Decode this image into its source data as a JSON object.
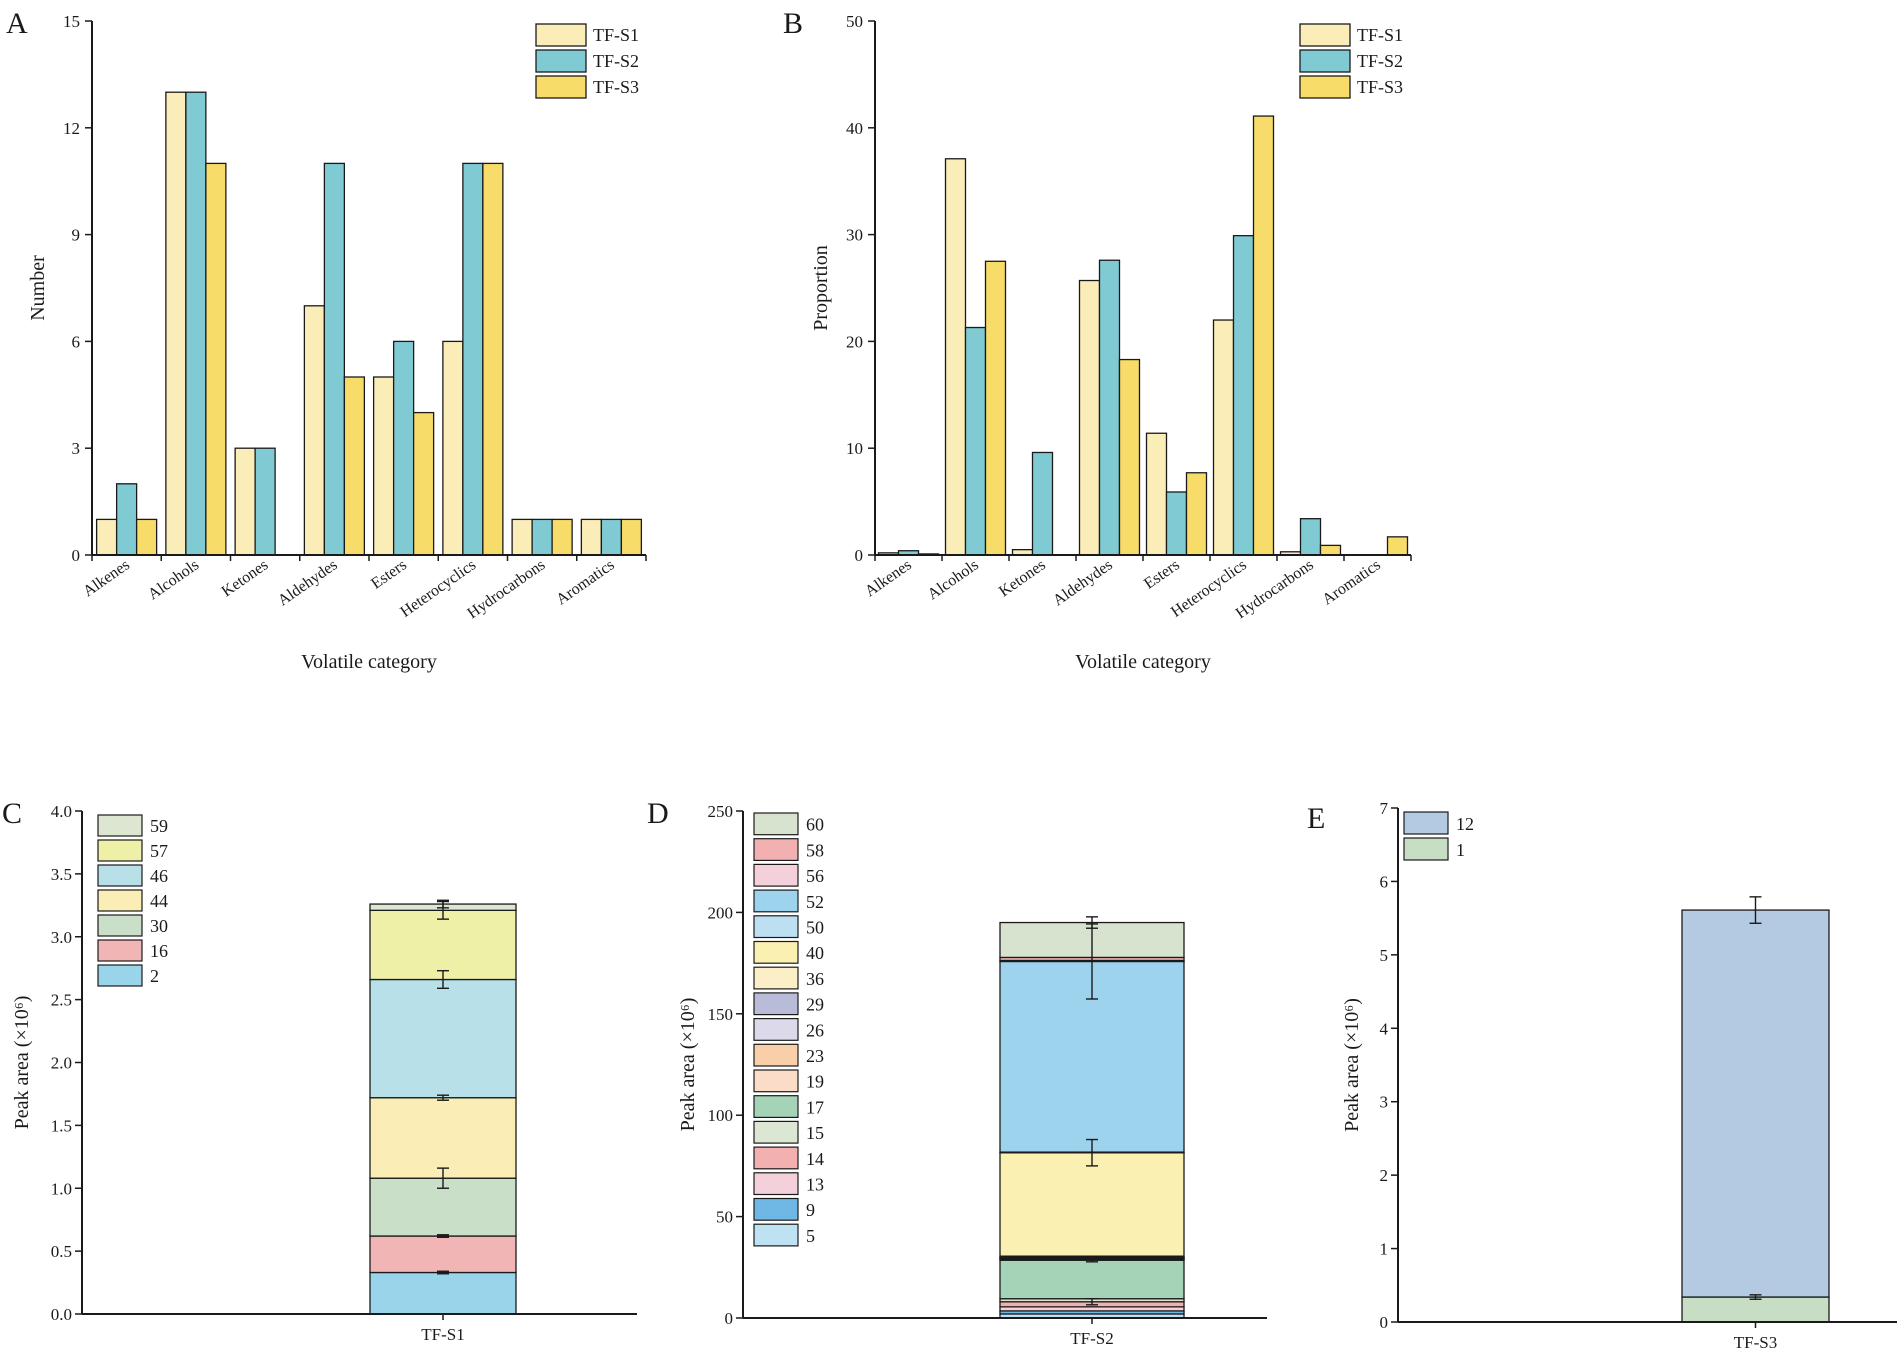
{
  "figure": {
    "panels": [
      "A",
      "B",
      "C",
      "D",
      "E"
    ]
  },
  "chart_data": [
    {
      "panel": "A",
      "type": "bar",
      "title": "",
      "xlabel": "Volatile category",
      "ylabel": "Number",
      "ylim": [
        0,
        15
      ],
      "yticks": [
        0,
        3,
        6,
        9,
        12,
        15
      ],
      "categories": [
        "Alkenes",
        "Alcohols",
        "Ketones",
        "Aldehydes",
        "Esters",
        "Heterocyclics",
        "Hydrocarbons",
        "Aromatics"
      ],
      "series": [
        {
          "name": "TF-S1",
          "color": "#FBEDB8",
          "values": [
            1,
            13,
            3,
            7,
            5,
            6,
            1,
            1
          ]
        },
        {
          "name": "TF-S2",
          "color": "#7FCAD3",
          "values": [
            2,
            13,
            3,
            11,
            6,
            11,
            1,
            1
          ]
        },
        {
          "name": "TF-S3",
          "color": "#F8DC6A",
          "values": [
            1,
            11,
            0,
            5,
            4,
            11,
            1,
            1
          ]
        }
      ],
      "legend": "top-right"
    },
    {
      "panel": "B",
      "type": "bar",
      "title": "",
      "xlabel": "Volatile category",
      "ylabel": "Proportion",
      "ylim": [
        0,
        50
      ],
      "yticks": [
        0,
        10,
        20,
        30,
        40,
        50
      ],
      "categories": [
        "Alkenes",
        "Alcohols",
        "Ketones",
        "Aldehydes",
        "Esters",
        "Heterocyclics",
        "Hydrocarbons",
        "Aromatics"
      ],
      "series": [
        {
          "name": "TF-S1",
          "color": "#FBEDB8",
          "values": [
            0.2,
            37.1,
            0.5,
            25.7,
            11.4,
            22.0,
            0.3,
            0
          ]
        },
        {
          "name": "TF-S2",
          "color": "#7FCAD3",
          "values": [
            0.4,
            21.3,
            9.6,
            27.6,
            5.9,
            29.9,
            3.4,
            0
          ]
        },
        {
          "name": "TF-S3",
          "color": "#F8DC6A",
          "values": [
            0.1,
            27.5,
            0,
            18.3,
            7.7,
            41.1,
            0.9,
            1.7
          ]
        }
      ],
      "legend": "top-right"
    },
    {
      "panel": "C",
      "type": "bar",
      "stacked": true,
      "xlabel": "",
      "ylabel": "Peak area (×10⁶)",
      "ylim": [
        0,
        4.0
      ],
      "yticks": [
        "0.0",
        "0.5",
        "1.0",
        "1.5",
        "2.0",
        "2.5",
        "3.0",
        "3.5",
        "4.0"
      ],
      "categories": [
        "TF-S1"
      ],
      "series": [
        {
          "name": "2",
          "color": "#9AD4EB",
          "values": [
            0.33
          ],
          "error": 0.01
        },
        {
          "name": "16",
          "color": "#F2B5B5",
          "values": [
            0.29
          ],
          "error": 0.01
        },
        {
          "name": "30",
          "color": "#C9DFC8",
          "values": [
            0.46
          ],
          "error": 0.08
        },
        {
          "name": "44",
          "color": "#FAEDB5",
          "values": [
            0.64
          ],
          "error": 0.02
        },
        {
          "name": "46",
          "color": "#B7E0E8",
          "values": [
            0.94
          ],
          "error": 0.07
        },
        {
          "name": "57",
          "color": "#EEF0A8",
          "values": [
            0.55
          ],
          "error": 0.07
        },
        {
          "name": "59",
          "color": "#DCE6D0",
          "values": [
            0.05
          ],
          "error": 0.03
        }
      ],
      "legend": "top-left"
    },
    {
      "panel": "D",
      "type": "bar",
      "stacked": true,
      "xlabel": "",
      "ylabel": "Peak area (×10⁶)",
      "ylim": [
        0,
        250
      ],
      "yticks": [
        "0",
        "50",
        "100",
        "150",
        "200",
        "250"
      ],
      "categories": [
        "TF-S2"
      ],
      "series": [
        {
          "name": "5",
          "color": "#BFE2F2",
          "values": [
            2
          ]
        },
        {
          "name": "9",
          "color": "#6FB8E6",
          "values": [
            1.5
          ]
        },
        {
          "name": "13",
          "color": "#F4D0DA",
          "values": [
            2
          ]
        },
        {
          "name": "14",
          "color": "#F2B0B0",
          "values": [
            2.5
          ],
          "error": 1.5
        },
        {
          "name": "15",
          "color": "#DCE7D3",
          "values": [
            1.5
          ]
        },
        {
          "name": "17",
          "color": "#A5D3B8",
          "values": [
            19
          ],
          "error": 0.8
        },
        {
          "name": "19",
          "color": "#FBDCC8",
          "values": [
            0.5
          ]
        },
        {
          "name": "23",
          "color": "#F8CFA8",
          "values": [
            0.4
          ]
        },
        {
          "name": "26",
          "color": "#DCDAEA",
          "values": [
            0.3
          ]
        },
        {
          "name": "29",
          "color": "#B8BCD8",
          "values": [
            0.3
          ]
        },
        {
          "name": "36",
          "color": "#FCEFC8",
          "values": [
            0.5
          ]
        },
        {
          "name": "40",
          "color": "#FAF0B2",
          "values": [
            51
          ],
          "error": 6.5
        },
        {
          "name": "50",
          "color": "#BCE0F2",
          "values": [
            0.3
          ]
        },
        {
          "name": "52",
          "color": "#9ED3EE",
          "values": [
            94
          ],
          "error": 18.5
        },
        {
          "name": "56",
          "color": "#F4D0DA",
          "values": [
            0.5
          ]
        },
        {
          "name": "58",
          "color": "#F2B0B0",
          "values": [
            1.5
          ]
        },
        {
          "name": "60",
          "color": "#D7E3CF",
          "values": [
            17.2
          ],
          "error": 2.8
        }
      ],
      "legend": "top-left"
    },
    {
      "panel": "E",
      "type": "bar",
      "stacked": true,
      "xlabel": "",
      "ylabel": "Peak area (×10⁶)",
      "ylim": [
        0,
        7
      ],
      "yticks": [
        "0",
        "1",
        "2",
        "3",
        "4",
        "5",
        "6",
        "7"
      ],
      "categories": [
        "TF-S3"
      ],
      "series": [
        {
          "name": "1",
          "color": "#C8DEC4",
          "values": [
            0.34
          ],
          "error": 0.03
        },
        {
          "name": "12",
          "color": "#B3CAE2",
          "values": [
            5.27
          ],
          "error": 0.18
        }
      ],
      "legend": "top-left"
    }
  ]
}
